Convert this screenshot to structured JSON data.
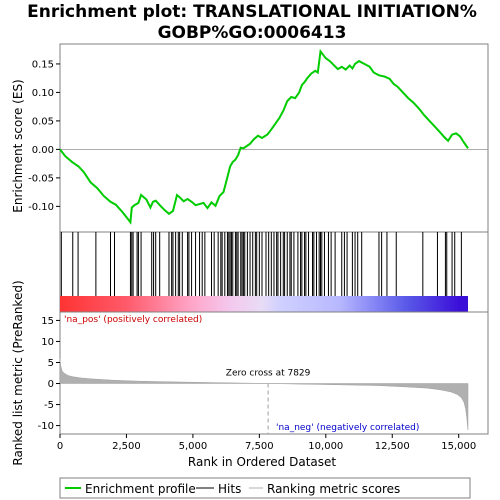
{
  "chart_data": {
    "type": "line",
    "title_line1": "Enrichment plot: TRANSLATIONAL INITIATION%",
    "title_line2": "GOBP%GO:0006413",
    "top_panel": {
      "ylabel": "Enrichment score (ES)",
      "ylim": [
        -0.145,
        0.185
      ],
      "yticks": [
        -0.1,
        -0.05,
        0.0,
        0.05,
        0.1,
        0.15
      ],
      "ytick_labels": [
        "-0.10",
        "-0.05",
        "0.00",
        "0.05",
        "0.10",
        "0.15"
      ],
      "series": [
        {
          "name": "Enrichment profile",
          "color": "#00cc00",
          "x": [
            0,
            200,
            450,
            700,
            900,
            1150,
            1400,
            1650,
            1900,
            2100,
            2350,
            2550,
            2650,
            2700,
            2800,
            2950,
            3050,
            3250,
            3400,
            3500,
            3600,
            3800,
            3950,
            4100,
            4250,
            4400,
            4500,
            4650,
            4800,
            4950,
            5100,
            5250,
            5400,
            5550,
            5700,
            5850,
            6000,
            6150,
            6300,
            6400,
            6500,
            6600,
            6700,
            6800,
            6900,
            7000,
            7150,
            7300,
            7450,
            7600,
            7800,
            7900,
            8100,
            8250,
            8400,
            8550,
            8700,
            8850,
            9000,
            9100,
            9200,
            9300,
            9450,
            9600,
            9700,
            9800,
            9900,
            10000,
            10150,
            10300,
            10450,
            10600,
            10750,
            10900,
            11000,
            11100,
            11250,
            11450,
            11650,
            11800,
            12000,
            12200,
            12400,
            12550,
            12700,
            12900,
            13100,
            13300,
            13500,
            13700,
            13900,
            14100,
            14300,
            14450,
            14600,
            14750,
            14900,
            15050,
            15200,
            15350
          ],
          "y": [
            0.0,
            -0.012,
            -0.022,
            -0.03,
            -0.04,
            -0.058,
            -0.068,
            -0.082,
            -0.092,
            -0.097,
            -0.11,
            -0.122,
            -0.128,
            -0.102,
            -0.098,
            -0.094,
            -0.08,
            -0.088,
            -0.102,
            -0.092,
            -0.09,
            -0.1,
            -0.107,
            -0.113,
            -0.108,
            -0.08,
            -0.084,
            -0.091,
            -0.087,
            -0.092,
            -0.098,
            -0.096,
            -0.094,
            -0.103,
            -0.093,
            -0.099,
            -0.082,
            -0.075,
            -0.048,
            -0.03,
            -0.022,
            -0.018,
            -0.01,
            0.003,
            0.002,
            0.005,
            0.01,
            0.018,
            0.024,
            0.02,
            0.026,
            0.032,
            0.045,
            0.055,
            0.068,
            0.085,
            0.092,
            0.09,
            0.1,
            0.113,
            0.118,
            0.125,
            0.133,
            0.138,
            0.135,
            0.172,
            0.166,
            0.16,
            0.155,
            0.148,
            0.141,
            0.145,
            0.14,
            0.147,
            0.142,
            0.15,
            0.155,
            0.15,
            0.145,
            0.135,
            0.13,
            0.128,
            0.124,
            0.115,
            0.11,
            0.1,
            0.09,
            0.082,
            0.072,
            0.06,
            0.05,
            0.04,
            0.03,
            0.022,
            0.015,
            0.026,
            0.028,
            0.023,
            0.012,
            0.002
          ]
        }
      ]
    },
    "hits": {
      "name": "Hits",
      "positions": [
        50,
        480,
        680,
        1350,
        1900,
        2050,
        2650,
        2700,
        2750,
        2900,
        2950,
        3050,
        3450,
        3520,
        3600,
        3750,
        4100,
        4200,
        4250,
        4350,
        4450,
        4500,
        4600,
        4800,
        4850,
        4950,
        5100,
        5250,
        5350,
        5450,
        5700,
        5800,
        5950,
        6050,
        6100,
        6200,
        6300,
        6350,
        6400,
        6450,
        6500,
        6600,
        6650,
        6700,
        6800,
        6850,
        6900,
        6950,
        7050,
        7150,
        7250,
        7350,
        7400,
        7500,
        7600,
        7750,
        7850,
        7950,
        8050,
        8150,
        8200,
        8300,
        8400,
        8450,
        8550,
        8650,
        8700,
        8800,
        8950,
        9050,
        9100,
        9200,
        9250,
        9350,
        9500,
        9550,
        9650,
        9750,
        9800,
        9850,
        9950,
        10100,
        10200,
        10350,
        10600,
        10700,
        10800,
        11000,
        11100,
        11200,
        11350,
        12000,
        12100,
        12300,
        12650,
        13650,
        14200,
        14500,
        14550,
        14750,
        14850,
        15100
      ]
    },
    "bottom_panel": {
      "ylabel": "Ranked list metric (PreRanked)",
      "xlabel": "Rank in Ordered Dataset",
      "ylim": [
        -12,
        17
      ],
      "yticks": [
        -10,
        -5,
        0,
        5,
        10,
        15
      ],
      "ytick_labels": [
        "-10",
        "-5",
        "0",
        "5",
        "10",
        "15"
      ],
      "xlim": [
        0,
        15500
      ],
      "xticks": [
        0,
        2500,
        5000,
        7500,
        10000,
        12500,
        15000
      ],
      "xtick_labels": [
        "0",
        "2,500",
        "5,000",
        "7,500",
        "10,000",
        "12,500",
        "15,000"
      ],
      "metric_color": "#b0b0b0",
      "metric_x": [
        0,
        30,
        80,
        150,
        300,
        500,
        800,
        1200,
        2000,
        3000,
        4500,
        6000,
        7000,
        7829,
        9000,
        10500,
        12000,
        13000,
        13800,
        14300,
        14700,
        14950,
        15100,
        15200,
        15260,
        15300,
        15330,
        15350
      ],
      "metric_y": [
        6.0,
        4.2,
        3.0,
        2.5,
        1.9,
        1.6,
        1.3,
        1.1,
        0.8,
        0.55,
        0.35,
        0.2,
        0.1,
        0.0,
        -0.15,
        -0.3,
        -0.5,
        -0.8,
        -1.1,
        -1.5,
        -2.0,
        -2.6,
        -3.4,
        -4.5,
        -6.0,
        -8.0,
        -10.0,
        -11.0
      ],
      "zero_cross_rank": 7829,
      "zero_cross_label": "Zero cross at 7829",
      "na_pos_label": "'na_pos' (positively correlated)",
      "na_neg_label": "'na_neg' (negatively correlated)",
      "na_pos_color": "#cc0000",
      "na_neg_color": "#0000cc"
    },
    "color_bar": {
      "stops": [
        {
          "rank": 0,
          "color": "#ff3333"
        },
        {
          "rank": 2500,
          "color": "#ff5a6a"
        },
        {
          "rank": 5000,
          "color": "#ffa7ca"
        },
        {
          "rank": 6400,
          "color": "#f4c8ee"
        },
        {
          "rank": 7600,
          "color": "#e8dcf6"
        },
        {
          "rank": 8300,
          "color": "#cfd0ff"
        },
        {
          "rank": 10500,
          "color": "#b8b8ff"
        },
        {
          "rank": 12000,
          "color": "#7f7ff4"
        },
        {
          "rank": 13000,
          "color": "#5a5ae8"
        },
        {
          "rank": 14500,
          "color": "#4422dd"
        },
        {
          "rank": 15000,
          "color": "#3a10d8"
        }
      ]
    },
    "legend": {
      "placement": "bottom",
      "items": [
        {
          "label": "Enrichment profile",
          "color": "#00cc00"
        },
        {
          "label": "Hits",
          "color": "#000000"
        },
        {
          "label": "Ranking metric scores",
          "color": "#b0b0b0"
        }
      ]
    }
  }
}
